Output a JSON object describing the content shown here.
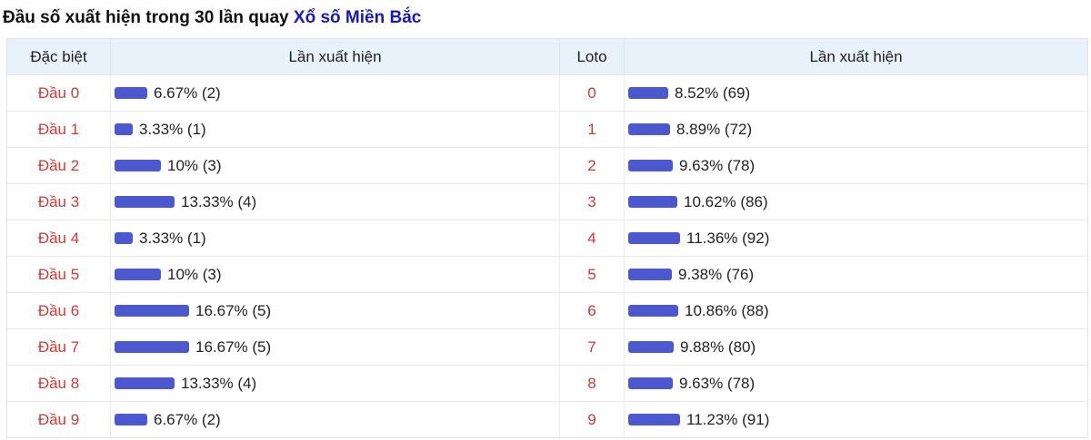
{
  "title": {
    "text": "Đầu số xuất hiện trong 30 lần quay ",
    "link_text": "Xổ số Miền Bắc"
  },
  "colors": {
    "bar": "#4c58cd",
    "label_red": "#cf3a32",
    "link_blue": "#1818c0",
    "header_bg": "#e9f2fa"
  },
  "table": {
    "headers": [
      "Đặc biệt",
      "Lần xuất hiện",
      "Loto",
      "Lần xuất hiện"
    ],
    "rows": [
      {
        "special": "Đầu 0",
        "special_pct": 6.67,
        "special_value": "6.67% (2)",
        "loto": "0",
        "loto_pct": 8.52,
        "loto_value": "8.52% (69)"
      },
      {
        "special": "Đầu 1",
        "special_pct": 3.33,
        "special_value": "3.33% (1)",
        "loto": "1",
        "loto_pct": 8.89,
        "loto_value": "8.89% (72)"
      },
      {
        "special": "Đầu 2",
        "special_pct": 10,
        "special_value": "10% (3)",
        "loto": "2",
        "loto_pct": 9.63,
        "loto_value": "9.63% (78)"
      },
      {
        "special": "Đầu 3",
        "special_pct": 13.33,
        "special_value": "13.33% (4)",
        "loto": "3",
        "loto_pct": 10.62,
        "loto_value": "10.62% (86)"
      },
      {
        "special": "Đầu 4",
        "special_pct": 3.33,
        "special_value": "3.33% (1)",
        "loto": "4",
        "loto_pct": 11.36,
        "loto_value": "11.36% (92)"
      },
      {
        "special": "Đầu 5",
        "special_pct": 10,
        "special_value": "10% (3)",
        "loto": "5",
        "loto_pct": 9.38,
        "loto_value": "9.38% (76)"
      },
      {
        "special": "Đầu 6",
        "special_pct": 16.67,
        "special_value": "16.67% (5)",
        "loto": "6",
        "loto_pct": 10.86,
        "loto_value": "10.86% (88)"
      },
      {
        "special": "Đầu 7",
        "special_pct": 16.67,
        "special_value": "16.67% (5)",
        "loto": "7",
        "loto_pct": 9.88,
        "loto_value": "9.88% (80)"
      },
      {
        "special": "Đầu 8",
        "special_pct": 13.33,
        "special_value": "13.33% (4)",
        "loto": "8",
        "loto_pct": 9.63,
        "loto_value": "9.63% (78)"
      },
      {
        "special": "Đầu 9",
        "special_pct": 6.67,
        "special_value": "6.67% (2)",
        "loto": "9",
        "loto_pct": 11.23,
        "loto_value": "11.23% (91)"
      }
    ]
  },
  "chart_data": [
    {
      "type": "bar",
      "title": "Đặc biệt - Lần xuất hiện (30 lần quay)",
      "categories": [
        "Đầu 0",
        "Đầu 1",
        "Đầu 2",
        "Đầu 3",
        "Đầu 4",
        "Đầu 5",
        "Đầu 6",
        "Đầu 7",
        "Đầu 8",
        "Đầu 9"
      ],
      "values": [
        6.67,
        3.33,
        10,
        13.33,
        3.33,
        10,
        16.67,
        16.67,
        13.33,
        6.67
      ],
      "counts": [
        2,
        1,
        3,
        4,
        1,
        3,
        5,
        5,
        4,
        2
      ],
      "unit": "%",
      "bar_color": "#4c58cd",
      "orientation": "horizontal"
    },
    {
      "type": "bar",
      "title": "Loto - Lần xuất hiện (30 lần quay)",
      "categories": [
        "0",
        "1",
        "2",
        "3",
        "4",
        "5",
        "6",
        "7",
        "8",
        "9"
      ],
      "values": [
        8.52,
        8.89,
        9.63,
        10.62,
        11.36,
        9.38,
        10.86,
        9.88,
        9.63,
        11.23
      ],
      "counts": [
        69,
        72,
        78,
        86,
        92,
        76,
        88,
        80,
        78,
        91
      ],
      "unit": "%",
      "bar_color": "#4c58cd",
      "orientation": "horizontal"
    }
  ]
}
